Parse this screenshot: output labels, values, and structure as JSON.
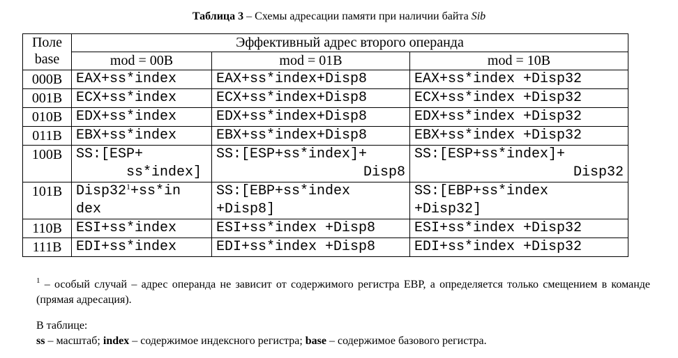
{
  "caption": {
    "lead": "Таблица 3",
    "text": " – Схемы адресации памяти при наличии байта ",
    "italic": "Sib"
  },
  "table": {
    "header_base_line1": "Поле",
    "header_base_line2": "base",
    "header_group": "Эффективный адрес второго операнда",
    "columns": [
      "mod = 00B",
      "mod = 01B",
      "mod = 10B"
    ],
    "rows": [
      {
        "base": "000B",
        "c0": "EAX+ss*index",
        "c1": "EAX+ss*index+Disp8",
        "c2": "EAX+ss*index +Disp32"
      },
      {
        "base": "001B",
        "c0": "ECX+ss*index",
        "c1": "ECX+ss*index+Disp8",
        "c2": "ECX+ss*index +Disp32"
      },
      {
        "base": "010B",
        "c0": "EDX+ss*index",
        "c1": "EDX+ss*index+Disp8",
        "c2": "EDX+ss*index +Disp32"
      },
      {
        "base": "011B",
        "c0": "EBX+ss*index",
        "c1": "EBX+ss*index+Disp8",
        "c2": "EBX+ss*index +Disp32"
      },
      {
        "base": "100B",
        "c0_l1": "SS:[ESP+",
        "c0_l2": "ss*index]",
        "c1_l1": "SS:[ESP+ss*index]+",
        "c1_l2": "Disp8",
        "c2_l1": "SS:[ESP+ss*index]+",
        "c2_l2": "Disp32"
      },
      {
        "base": "101B",
        "c0_l1a": "Disp32",
        "c0_fn": "1",
        "c0_l1b": "+ss*in",
        "c0_l2": "dex",
        "c1_l1": "SS:[EBP+ss*index",
        "c1_l2": "+Disp8]",
        "c2_l1": "SS:[EBP+ss*index",
        "c2_l2": "+Disp32]"
      },
      {
        "base": "110B",
        "c0": "ESI+ss*index",
        "c1": "ESI+ss*index +Disp8",
        "c2": "ESI+ss*index +Disp32"
      },
      {
        "base": "111B",
        "c0": "EDI+ss*index",
        "c1": "EDI+ss*index +Disp8",
        "c2": "EDI+ss*index +Disp32"
      }
    ]
  },
  "footnote": {
    "marker": "1",
    "text": " – особый случай – адрес операнда не зависит от содержимого регистра EBP, а определяется только смещением в команде (прямая адресация)."
  },
  "legend": {
    "title": "В таблице:",
    "ss_term": "ss",
    "ss_desc": " – масштаб; ",
    "index_term": "index",
    "index_desc": " – содержимое индексного регистра; ",
    "base_term": "base",
    "base_desc": " – содержимое базового регистра."
  }
}
